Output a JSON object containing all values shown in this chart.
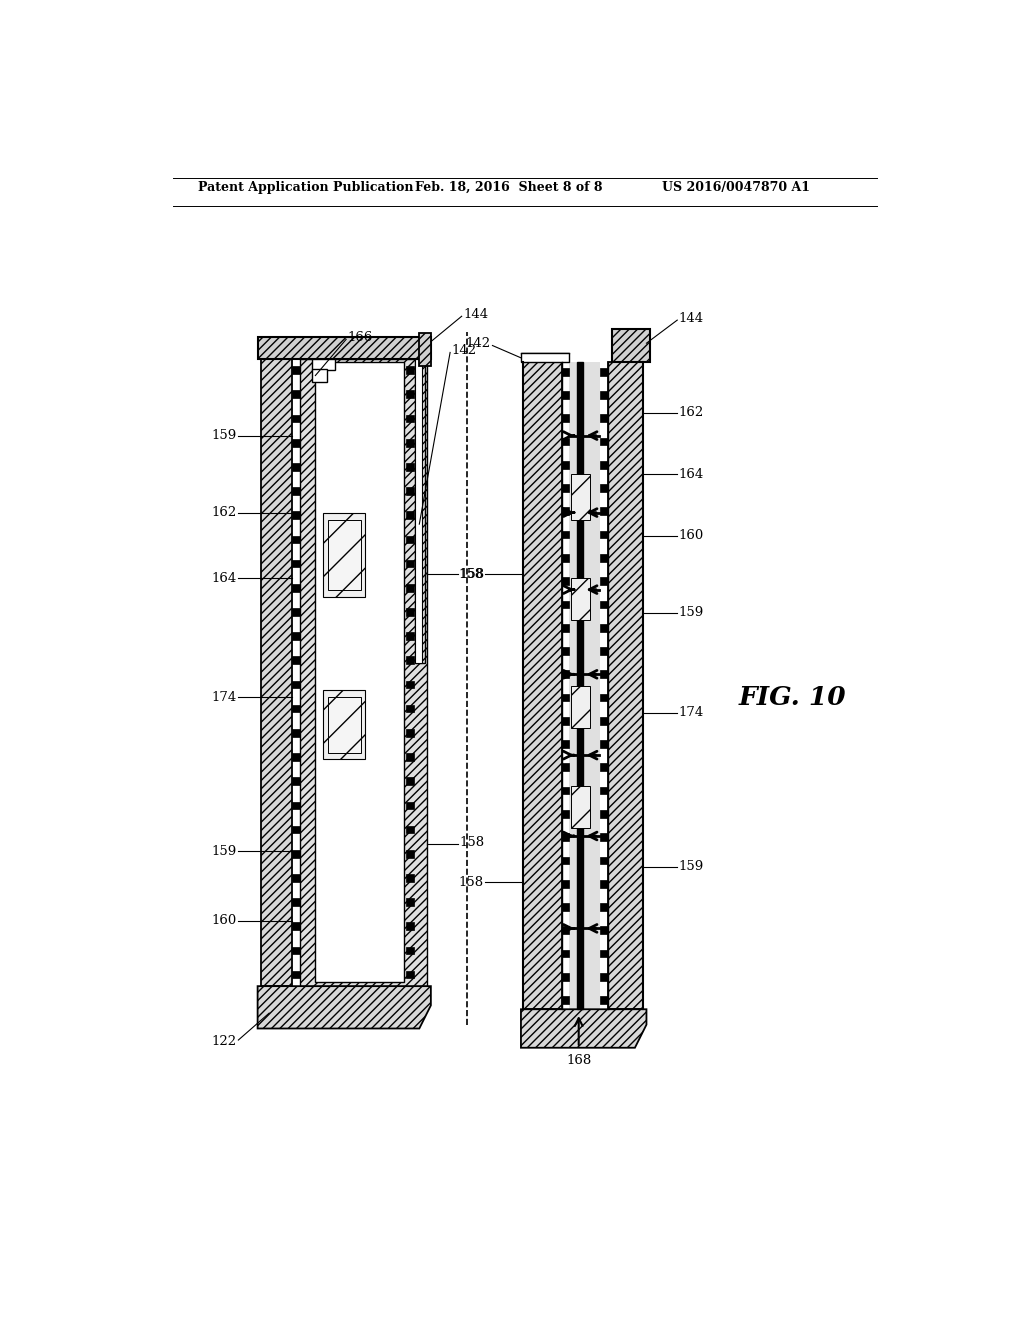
{
  "bg_color": "#ffffff",
  "header_left": "Patent Application Publication",
  "header_mid": "Feb. 18, 2016  Sheet 8 of 8",
  "header_right": "US 2016/0047870 A1",
  "fig_label": "FIG. 10"
}
